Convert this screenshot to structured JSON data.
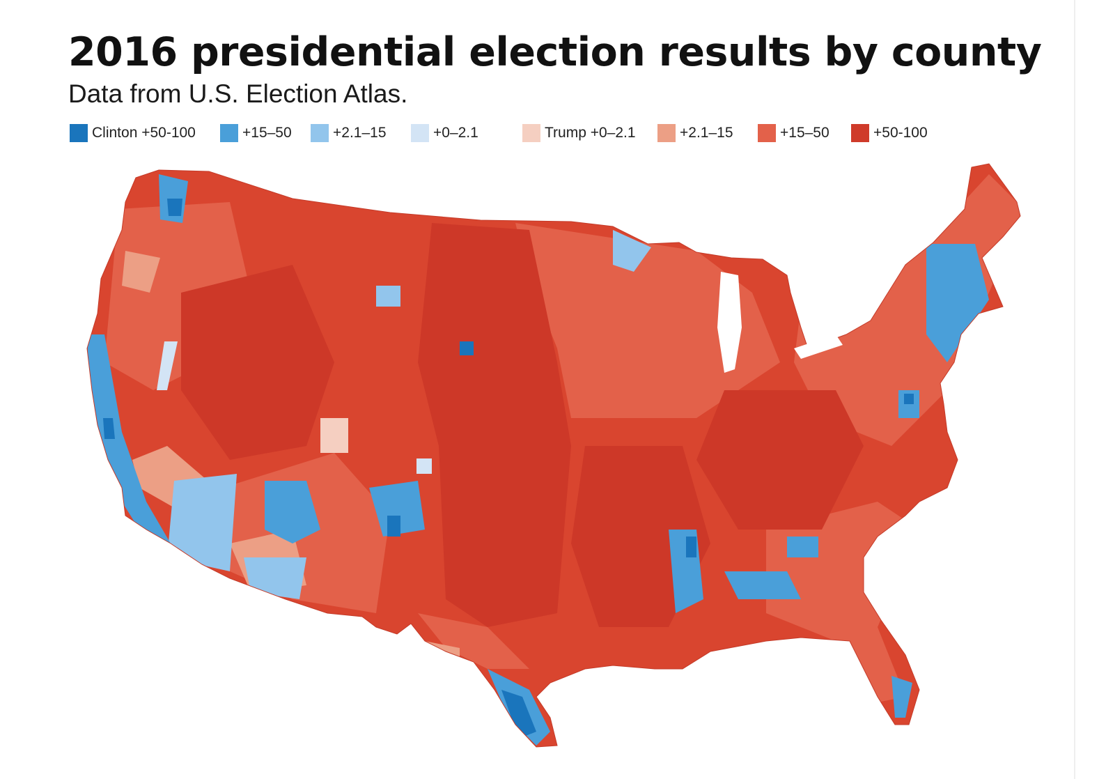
{
  "title": "2016 presidential election results by county",
  "subtitle": "Data from U.S. Election Atlas.",
  "legend": [
    {
      "label": "Clinton +50-100",
      "color": "#1a75bc"
    },
    {
      "label": "+15–50",
      "color": "#4a9fd9"
    },
    {
      "label": "+2.1–15",
      "color": "#92c5ec"
    },
    {
      "label": "+0–2.1",
      "color": "#d3e4f5"
    },
    {
      "label": "Trump +0–2.1",
      "color": "#f5cfc1"
    },
    {
      "label": "+2.1–15",
      "color": "#ec9f85"
    },
    {
      "label": "+15–50",
      "color": "#e3614a"
    },
    {
      "label": "+50-100",
      "color": "#cf3b2a"
    }
  ],
  "map": {
    "region": "Contiguous United States",
    "dominant_color": "#d9452f"
  }
}
